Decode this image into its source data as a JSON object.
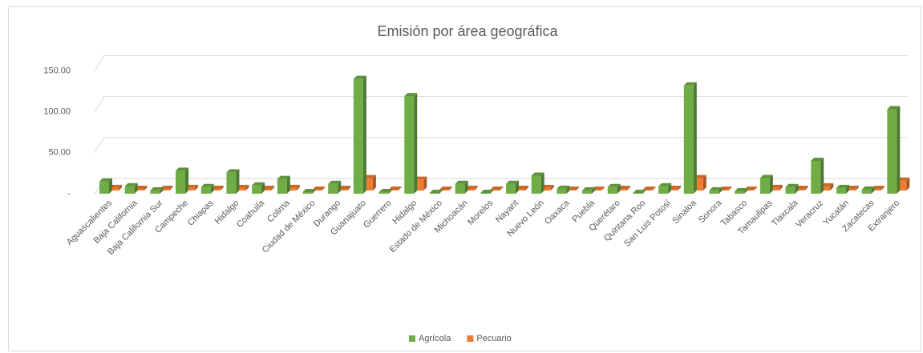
{
  "chart_data": {
    "type": "bar3d",
    "title": "Emisión por área geográfica",
    "categories": [
      "Aguascalientes",
      "Baja California",
      "Baja California Sur",
      "Campeche",
      "Chiapas",
      "Hidalgo",
      "Coahuila",
      "Colima",
      "Ciudad de México",
      "Durango",
      "Guanajuato",
      "Guerrero",
      "Hidalgo",
      "Estado de México",
      "Michoacán",
      "Morelos",
      "Nayarit",
      "Nuevo León",
      "Oaxaca",
      "Puebla",
      "Querétaro",
      "Quintana Roo",
      "San Luis Potosí",
      "Sinaloa",
      "Sonora",
      "Tabasco",
      "Tamaulipas",
      "Tlaxcala",
      "Veracruz",
      "Yucatán",
      "Zacatecas",
      "Extranjero"
    ],
    "series": [
      {
        "name": "Agrícola",
        "color": "#70ad47",
        "values": [
          15,
          9,
          4,
          28,
          8,
          26,
          10,
          18,
          2,
          12,
          140,
          2,
          119,
          1,
          12,
          1,
          12,
          22,
          6,
          4,
          8,
          1,
          9,
          132,
          4,
          3,
          19,
          8,
          40,
          7,
          5,
          103
        ]
      },
      {
        "name": "Pecuario",
        "color": "#ed7d31",
        "values": [
          3,
          2,
          2,
          3,
          2,
          3,
          2,
          3,
          1,
          2,
          15,
          1,
          13,
          1,
          2,
          1,
          2,
          3,
          1,
          1,
          2,
          1,
          2,
          15,
          1,
          1,
          3,
          2,
          5,
          2,
          2,
          12
        ]
      }
    ],
    "ylim": [
      0,
      165
    ],
    "yticks": [
      {
        "value": 0,
        "label": "-"
      },
      {
        "value": 50,
        "label": "50.00"
      },
      {
        "value": 100,
        "label": "100.00"
      },
      {
        "value": 150,
        "label": "150.00"
      }
    ],
    "grid": true,
    "legend": "bottom"
  }
}
